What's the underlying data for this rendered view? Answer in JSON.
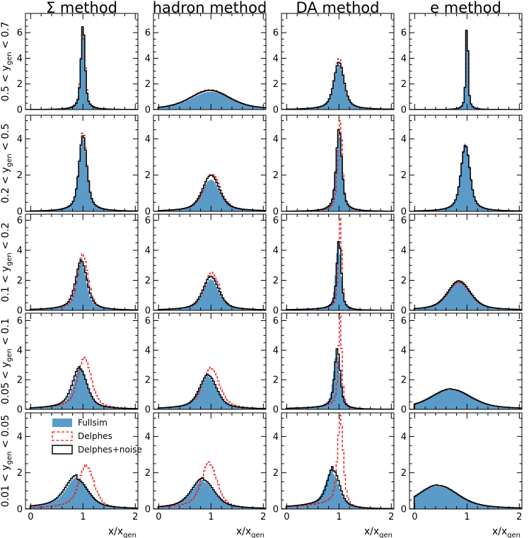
{
  "chart_data": {
    "type": "histogram-grid",
    "columns": [
      "Σ method",
      "hadron method",
      "DA method",
      "e method"
    ],
    "rows": [
      {
        "label": "0.5 < y",
        "sub": "gen",
        "label2": " < 0.7",
        "ylim": [
          0,
          7.5
        ],
        "yticks": [
          0,
          2,
          4,
          6
        ]
      },
      {
        "label": "0.2 < y",
        "sub": "gen",
        "label2": " < 0.5",
        "ylim": [
          0,
          5.3
        ],
        "yticks": [
          0,
          2,
          4
        ]
      },
      {
        "label": "0.1 < y",
        "sub": "gen",
        "label2": " < 0.2",
        "ylim": [
          0,
          6.4
        ],
        "yticks": [
          0,
          2,
          4,
          6
        ]
      },
      {
        "label": "0.05 < y",
        "sub": "gen",
        "label2": " < 0.1",
        "ylim": [
          0,
          6.5
        ],
        "yticks": [
          0,
          2,
          4,
          6
        ]
      },
      {
        "label": "0.01 < y",
        "sub": "gen",
        "label2": " < 0.05",
        "ylim": [
          0,
          5.3
        ],
        "yticks": [
          0,
          2,
          4
        ]
      }
    ],
    "x_label": {
      "main": "x/x",
      "sub": "gen"
    },
    "xlim": [
      -0.1,
      2.05
    ],
    "xticks": [
      0,
      1,
      2
    ],
    "legend": {
      "position": "top-left of bottom-left panel",
      "entries": [
        {
          "name": "Fullsim",
          "style": "filled",
          "color": "#5b9bc8"
        },
        {
          "name": "Delphes",
          "style": "dashed",
          "color": "#e8191c"
        },
        {
          "name": "Delphes+noise",
          "style": "solid",
          "color": "#000000"
        }
      ]
    },
    "colors": {
      "fullsim": "#5b9bc8",
      "delphes": "#e8191c",
      "noise": "#000000"
    },
    "distribution_params": [
      [
        {
          "fs": [
            1.0,
            0.035,
            6.6,
            0.0
          ],
          "de": [
            1.0,
            0.04,
            6.1,
            0.0
          ],
          "no": [
            1.0,
            0.035,
            6.7,
            0.0
          ]
        },
        {
          "fs": [
            1.0,
            0.35,
            1.4,
            0.0
          ],
          "de": [
            0.98,
            0.34,
            1.55,
            0.0
          ],
          "no": [
            0.98,
            0.35,
            1.5,
            0.0
          ]
        },
        {
          "fs": [
            1.0,
            0.09,
            3.55,
            0.0
          ],
          "de": [
            1.0,
            0.085,
            4.0,
            0.0
          ],
          "no": [
            1.0,
            0.09,
            3.7,
            0.0
          ]
        },
        {
          "fs": [
            1.0,
            0.02,
            7.0,
            0.0
          ],
          "de": [
            1.0,
            0.02,
            6.9,
            0.0
          ],
          "no": [
            1.0,
            0.02,
            6.9,
            0.0
          ]
        }
      ],
      [
        {
          "fs": [
            1.0,
            0.07,
            4.1,
            0.0
          ],
          "de": [
            1.0,
            0.07,
            4.35,
            0.0
          ],
          "no": [
            1.0,
            0.07,
            4.2,
            0.0
          ]
        },
        {
          "fs": [
            1.0,
            0.16,
            1.75,
            0.0
          ],
          "de": [
            1.02,
            0.15,
            2.05,
            0.0
          ],
          "no": [
            1.0,
            0.15,
            2.0,
            0.0
          ]
        },
        {
          "fs": [
            1.0,
            0.055,
            4.3,
            0.0
          ],
          "de": [
            1.02,
            0.04,
            5.0,
            0.0
          ],
          "no": [
            1.0,
            0.05,
            4.6,
            0.0
          ]
        },
        {
          "fs": [
            0.97,
            0.08,
            3.75,
            0.0
          ],
          "de": [
            0.97,
            0.08,
            3.6,
            0.0
          ],
          "no": [
            0.97,
            0.08,
            3.65,
            0.0
          ]
        }
      ],
      [
        {
          "fs": [
            0.97,
            0.09,
            3.25,
            0.05
          ],
          "de": [
            1.0,
            0.09,
            3.7,
            0.05
          ],
          "no": [
            0.97,
            0.1,
            3.3,
            0.05
          ]
        },
        {
          "fs": [
            1.0,
            0.14,
            2.05,
            0.03
          ],
          "de": [
            1.02,
            0.13,
            2.5,
            0.03
          ],
          "no": [
            1.0,
            0.14,
            2.25,
            0.03
          ]
        },
        {
          "fs": [
            0.99,
            0.045,
            4.5,
            0.05
          ],
          "de": [
            1.02,
            0.03,
            6.0,
            0.05
          ],
          "no": [
            1.0,
            0.04,
            4.6,
            0.05
          ]
        },
        {
          "fs": [
            0.85,
            0.2,
            1.9,
            0.03
          ],
          "de": [
            0.85,
            0.2,
            1.85,
            0.03
          ],
          "no": [
            0.85,
            0.2,
            1.95,
            0.03
          ]
        }
      ],
      [
        {
          "fs": [
            0.95,
            0.12,
            2.75,
            0.1
          ],
          "de": [
            1.03,
            0.12,
            3.4,
            0.08
          ],
          "no": [
            0.94,
            0.13,
            2.75,
            0.1
          ]
        },
        {
          "fs": [
            0.95,
            0.15,
            2.2,
            0.08
          ],
          "de": [
            1.0,
            0.15,
            2.75,
            0.08
          ],
          "no": [
            0.95,
            0.15,
            2.3,
            0.08
          ]
        },
        {
          "fs": [
            0.96,
            0.06,
            3.7,
            0.08
          ],
          "de": [
            1.02,
            0.03,
            6.2,
            0.08
          ],
          "no": [
            0.97,
            0.05,
            4.0,
            0.08
          ]
        },
        {
          "fs": [
            0.7,
            0.35,
            1.3,
            0.06
          ],
          "de": [
            0.7,
            0.35,
            1.35,
            0.06
          ],
          "no": [
            0.7,
            0.35,
            1.35,
            0.06
          ]
        }
      ],
      [
        {
          "fs": [
            0.9,
            0.2,
            1.6,
            0.25
          ],
          "de": [
            1.07,
            0.13,
            2.35,
            0.12
          ],
          "no": [
            0.88,
            0.2,
            1.65,
            0.28
          ]
        },
        {
          "fs": [
            0.85,
            0.2,
            1.5,
            0.15
          ],
          "de": [
            0.97,
            0.14,
            2.45,
            0.12
          ],
          "no": [
            0.85,
            0.2,
            1.6,
            0.15
          ]
        },
        {
          "fs": [
            0.88,
            0.12,
            1.95,
            0.3
          ],
          "de": [
            1.03,
            0.05,
            4.9,
            0.15
          ],
          "no": [
            0.9,
            0.11,
            2.1,
            0.3
          ]
        },
        {
          "fs": [
            0.45,
            0.35,
            1.25,
            0.05
          ],
          "de": [
            0.45,
            0.35,
            1.3,
            0.05
          ],
          "no": [
            0.45,
            0.35,
            1.3,
            0.05
          ]
        }
      ]
    ]
  }
}
